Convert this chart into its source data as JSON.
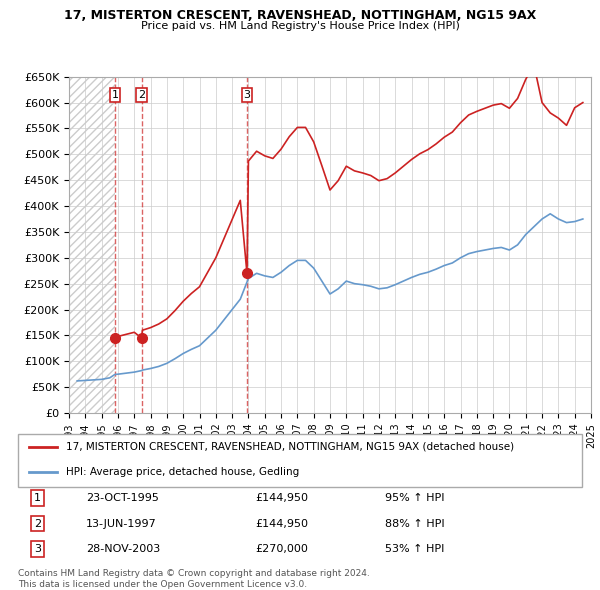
{
  "title": "17, MISTERTON CRESCENT, RAVENSHEAD, NOTTINGHAM, NG15 9AX",
  "subtitle": "Price paid vs. HM Land Registry's House Price Index (HPI)",
  "ylabel_ticks": [
    "£0",
    "£50K",
    "£100K",
    "£150K",
    "£200K",
    "£250K",
    "£300K",
    "£350K",
    "£400K",
    "£450K",
    "£500K",
    "£550K",
    "£600K",
    "£650K"
  ],
  "ytick_values": [
    0,
    50000,
    100000,
    150000,
    200000,
    250000,
    300000,
    350000,
    400000,
    450000,
    500000,
    550000,
    600000,
    650000
  ],
  "hpi_color": "#6699cc",
  "price_color": "#cc2222",
  "transaction_color": "#cc2222",
  "background_hatch_color": "#dddddd",
  "sale_points": [
    {
      "year": 1995.81,
      "price": 144950,
      "label": "1"
    },
    {
      "year": 1997.45,
      "price": 144950,
      "label": "2"
    },
    {
      "year": 2003.91,
      "price": 270000,
      "label": "3"
    }
  ],
  "legend_line1": "17, MISTERTON CRESCENT, RAVENSHEAD, NOTTINGHAM, NG15 9AX (detached house)",
  "legend_line2": "HPI: Average price, detached house, Gedling",
  "table_rows": [
    {
      "num": "1",
      "date": "23-OCT-1995",
      "price": "£144,950",
      "pct": "95% ↑ HPI"
    },
    {
      "num": "2",
      "date": "13-JUN-1997",
      "price": "£144,950",
      "pct": "88% ↑ HPI"
    },
    {
      "num": "3",
      "date": "28-NOV-2003",
      "price": "£270,000",
      "pct": "53% ↑ HPI"
    }
  ],
  "footer": "Contains HM Land Registry data © Crown copyright and database right 2024.\nThis data is licensed under the Open Government Licence v3.0.",
  "hpi_data": {
    "years": [
      1993.5,
      1994.0,
      1994.5,
      1995.0,
      1995.5,
      1995.81,
      1996.0,
      1996.5,
      1997.0,
      1997.45,
      1997.5,
      1998.0,
      1998.5,
      1999.0,
      1999.5,
      2000.0,
      2000.5,
      2001.0,
      2001.5,
      2002.0,
      2002.5,
      2003.0,
      2003.5,
      2003.91,
      2004.0,
      2004.5,
      2005.0,
      2005.5,
      2006.0,
      2006.5,
      2007.0,
      2007.5,
      2008.0,
      2008.5,
      2009.0,
      2009.5,
      2010.0,
      2010.5,
      2011.0,
      2011.5,
      2012.0,
      2012.5,
      2013.0,
      2013.5,
      2014.0,
      2014.5,
      2015.0,
      2015.5,
      2016.0,
      2016.5,
      2017.0,
      2017.5,
      2018.0,
      2018.5,
      2019.0,
      2019.5,
      2020.0,
      2020.5,
      2021.0,
      2021.5,
      2022.0,
      2022.5,
      2023.0,
      2023.5,
      2024.0,
      2024.5
    ],
    "values": [
      62000,
      63000,
      64000,
      65000,
      68000,
      74500,
      75000,
      77000,
      79000,
      82000,
      83000,
      86000,
      90000,
      96000,
      105000,
      115000,
      123000,
      130000,
      145000,
      160000,
      180000,
      200000,
      220000,
      253000,
      260000,
      270000,
      265000,
      262000,
      272000,
      285000,
      295000,
      295000,
      280000,
      255000,
      230000,
      240000,
      255000,
      250000,
      248000,
      245000,
      240000,
      242000,
      248000,
      255000,
      262000,
      268000,
      272000,
      278000,
      285000,
      290000,
      300000,
      308000,
      312000,
      315000,
      318000,
      320000,
      315000,
      325000,
      345000,
      360000,
      375000,
      385000,
      375000,
      368000,
      370000,
      375000
    ]
  },
  "price_line_data": {
    "years": [
      1995.81,
      1996.0,
      1996.5,
      1997.0,
      1997.45,
      1997.5,
      1998.0,
      1998.5,
      1999.0,
      1999.5,
      2000.0,
      2000.5,
      2001.0,
      2001.5,
      2002.0,
      2002.5,
      2003.0,
      2003.5,
      2003.91,
      2004.0,
      2004.5,
      2005.0,
      2005.5,
      2006.0,
      2006.5,
      2007.0,
      2007.5,
      2008.0,
      2008.5,
      2009.0,
      2009.5,
      2010.0,
      2010.5,
      2011.0,
      2011.5,
      2012.0,
      2012.5,
      2013.0,
      2013.5,
      2014.0,
      2014.5,
      2015.0,
      2015.5,
      2016.0,
      2016.5,
      2017.0,
      2017.5,
      2018.0,
      2018.5,
      2019.0,
      2019.5,
      2020.0,
      2020.5,
      2021.0,
      2021.5,
      2022.0,
      2022.5,
      2023.0,
      2023.5,
      2024.0,
      2024.5
    ],
    "values": [
      144950,
      148000,
      152000,
      156000,
      144950,
      160000,
      165000,
      172000,
      182000,
      198000,
      216000,
      231000,
      244000,
      272000,
      300000,
      337000,
      374000,
      411000,
      270000,
      487000,
      506000,
      497000,
      492000,
      510000,
      534000,
      552000,
      552000,
      524000,
      478000,
      431000,
      449000,
      477000,
      468000,
      464000,
      459000,
      449000,
      453000,
      464000,
      477000,
      490000,
      501000,
      509000,
      520000,
      533000,
      543000,
      561000,
      576000,
      583000,
      589000,
      595000,
      598000,
      589000,
      608000,
      645000,
      673000,
      600000,
      580000,
      570000,
      556000,
      590000,
      600000
    ]
  },
  "xmin": 1993,
  "xmax": 2025,
  "ymin": 0,
  "ymax": 650000,
  "hatch_xmin": 1993,
  "hatch_xmax": 1995.81
}
